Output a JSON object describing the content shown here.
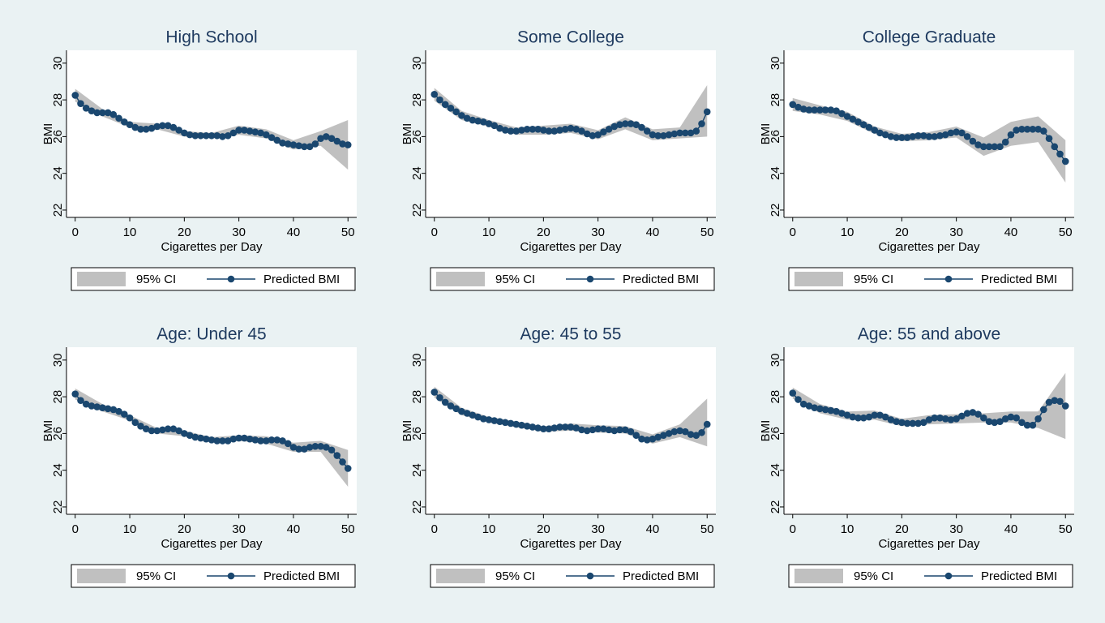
{
  "chart_data": [
    {
      "type": "line",
      "title": "High School",
      "xlabel": "Cigarettes per Day",
      "ylabel": "BMI",
      "x": [
        0,
        1,
        2,
        3,
        4,
        5,
        6,
        7,
        8,
        9,
        10,
        11,
        12,
        13,
        14,
        15,
        16,
        17,
        18,
        19,
        20,
        21,
        22,
        23,
        24,
        25,
        26,
        27,
        28,
        29,
        30,
        31,
        32,
        33,
        34,
        35,
        36,
        37,
        38,
        39,
        40,
        41,
        42,
        43,
        44,
        45,
        46,
        47,
        48,
        49,
        50
      ],
      "series": [
        {
          "name": "Predicted BMI",
          "color": "#1a476f",
          "values": [
            28.25,
            27.8,
            27.55,
            27.4,
            27.3,
            27.3,
            27.3,
            27.2,
            27.0,
            26.8,
            26.65,
            26.5,
            26.4,
            26.4,
            26.45,
            26.55,
            26.6,
            26.6,
            26.5,
            26.35,
            26.2,
            26.1,
            26.05,
            26.05,
            26.05,
            26.05,
            26.05,
            26.0,
            26.05,
            26.2,
            26.35,
            26.35,
            26.3,
            26.25,
            26.2,
            26.1,
            25.95,
            25.8,
            25.65,
            25.6,
            25.55,
            25.5,
            25.45,
            25.45,
            25.6,
            25.9,
            26.0,
            25.9,
            25.75,
            25.6,
            25.55
          ]
        }
      ],
      "ci": {
        "name": "95% CI",
        "color": "#c0c0c0",
        "x": [
          0,
          5,
          10,
          15,
          20,
          25,
          30,
          35,
          40,
          45,
          50
        ],
        "lower": [
          27.9,
          27.1,
          26.5,
          26.4,
          26.0,
          25.9,
          26.1,
          25.9,
          25.3,
          25.5,
          24.2
        ],
        "upper": [
          28.6,
          27.5,
          26.8,
          26.7,
          26.3,
          26.2,
          26.6,
          26.4,
          25.8,
          26.3,
          26.9
        ]
      },
      "xlim": [
        -1.6,
        51.6
      ],
      "ylim": [
        21.6,
        30.7
      ],
      "xticks": [
        0,
        10,
        20,
        30,
        40,
        50
      ],
      "yticks": [
        22,
        24,
        26,
        28,
        30
      ],
      "legend": "bottom"
    },
    {
      "type": "line",
      "title": "Some College",
      "xlabel": "Cigarettes per Day",
      "ylabel": "BMI",
      "x": [
        0,
        1,
        2,
        3,
        4,
        5,
        6,
        7,
        8,
        9,
        10,
        11,
        12,
        13,
        14,
        15,
        16,
        17,
        18,
        19,
        20,
        21,
        22,
        23,
        24,
        25,
        26,
        27,
        28,
        29,
        30,
        31,
        32,
        33,
        34,
        35,
        36,
        37,
        38,
        39,
        40,
        41,
        42,
        43,
        44,
        45,
        46,
        47,
        48,
        49,
        50
      ],
      "series": [
        {
          "name": "Predicted BMI",
          "color": "#1a476f",
          "values": [
            28.3,
            28.0,
            27.75,
            27.55,
            27.35,
            27.15,
            27.0,
            26.9,
            26.85,
            26.8,
            26.7,
            26.6,
            26.45,
            26.35,
            26.3,
            26.3,
            26.35,
            26.4,
            26.4,
            26.4,
            26.35,
            26.3,
            26.3,
            26.35,
            26.4,
            26.45,
            26.4,
            26.3,
            26.15,
            26.05,
            26.1,
            26.25,
            26.4,
            26.55,
            26.65,
            26.7,
            26.7,
            26.65,
            26.5,
            26.3,
            26.1,
            26.05,
            26.05,
            26.1,
            26.15,
            26.2,
            26.2,
            26.2,
            26.3,
            26.7,
            27.35
          ]
        }
      ],
      "ci": {
        "name": "95% CI",
        "color": "#c0c0c0",
        "x": [
          0,
          5,
          10,
          15,
          20,
          25,
          30,
          35,
          40,
          45,
          50
        ],
        "lower": [
          27.95,
          26.9,
          26.55,
          26.1,
          26.1,
          26.2,
          25.85,
          26.4,
          25.8,
          25.9,
          26.0
        ],
        "upper": [
          28.65,
          27.4,
          26.9,
          26.5,
          26.6,
          26.7,
          26.35,
          27.05,
          26.4,
          26.5,
          28.8
        ]
      },
      "xlim": [
        -1.6,
        51.6
      ],
      "ylim": [
        21.6,
        30.7
      ],
      "xticks": [
        0,
        10,
        20,
        30,
        40,
        50
      ],
      "yticks": [
        22,
        24,
        26,
        28,
        30
      ],
      "legend": "bottom"
    },
    {
      "type": "line",
      "title": "College Graduate",
      "xlabel": "Cigarettes per Day",
      "ylabel": "BMI",
      "x": [
        0,
        1,
        2,
        3,
        4,
        5,
        6,
        7,
        8,
        9,
        10,
        11,
        12,
        13,
        14,
        15,
        16,
        17,
        18,
        19,
        20,
        21,
        22,
        23,
        24,
        25,
        26,
        27,
        28,
        29,
        30,
        31,
        32,
        33,
        34,
        35,
        36,
        37,
        38,
        39,
        40,
        41,
        42,
        43,
        44,
        45,
        46,
        47,
        48,
        49,
        50
      ],
      "series": [
        {
          "name": "Predicted BMI",
          "color": "#1a476f",
          "values": [
            27.75,
            27.6,
            27.5,
            27.45,
            27.45,
            27.45,
            27.45,
            27.45,
            27.4,
            27.25,
            27.1,
            26.95,
            26.8,
            26.65,
            26.5,
            26.35,
            26.2,
            26.1,
            26.0,
            25.95,
            25.95,
            25.95,
            26.0,
            26.05,
            26.05,
            26.0,
            26.0,
            26.05,
            26.1,
            26.2,
            26.25,
            26.2,
            26.0,
            25.75,
            25.55,
            25.45,
            25.45,
            25.45,
            25.45,
            25.7,
            26.1,
            26.35,
            26.4,
            26.4,
            26.4,
            26.4,
            26.3,
            25.9,
            25.45,
            25.05,
            24.65
          ]
        }
      ],
      "ci": {
        "name": "95% CI",
        "color": "#c0c0c0",
        "x": [
          0,
          5,
          10,
          15,
          20,
          25,
          30,
          35,
          40,
          45,
          50
        ],
        "lower": [
          27.4,
          27.2,
          26.85,
          26.15,
          25.75,
          25.8,
          25.95,
          24.95,
          25.5,
          25.7,
          23.5
        ],
        "upper": [
          28.1,
          27.7,
          27.35,
          26.55,
          26.15,
          26.25,
          26.55,
          25.95,
          26.8,
          27.1,
          25.8
        ]
      },
      "xlim": [
        -1.6,
        51.6
      ],
      "ylim": [
        21.6,
        30.7
      ],
      "xticks": [
        0,
        10,
        20,
        30,
        40,
        50
      ],
      "yticks": [
        22,
        24,
        26,
        28,
        30
      ],
      "legend": "bottom"
    },
    {
      "type": "line",
      "title": "Age: Under 45",
      "xlabel": "Cigarettes per Day",
      "ylabel": "BMI",
      "x": [
        0,
        1,
        2,
        3,
        4,
        5,
        6,
        7,
        8,
        9,
        10,
        11,
        12,
        13,
        14,
        15,
        16,
        17,
        18,
        19,
        20,
        21,
        22,
        23,
        24,
        25,
        26,
        27,
        28,
        29,
        30,
        31,
        32,
        33,
        34,
        35,
        36,
        37,
        38,
        39,
        40,
        41,
        42,
        43,
        44,
        45,
        46,
        47,
        48,
        49,
        50
      ],
      "series": [
        {
          "name": "Predicted BMI",
          "color": "#1a476f",
          "values": [
            28.15,
            27.8,
            27.6,
            27.5,
            27.45,
            27.4,
            27.35,
            27.3,
            27.2,
            27.05,
            26.85,
            26.6,
            26.4,
            26.25,
            26.15,
            26.15,
            26.2,
            26.25,
            26.25,
            26.15,
            26.0,
            25.9,
            25.8,
            25.75,
            25.7,
            25.65,
            25.6,
            25.6,
            25.6,
            25.7,
            25.75,
            25.75,
            25.7,
            25.65,
            25.6,
            25.6,
            25.65,
            25.65,
            25.6,
            25.45,
            25.25,
            25.15,
            25.15,
            25.25,
            25.3,
            25.3,
            25.25,
            25.1,
            24.8,
            24.45,
            24.1
          ]
        }
      ],
      "ci": {
        "name": "95% CI",
        "color": "#c0c0c0",
        "x": [
          0,
          5,
          10,
          15,
          20,
          25,
          30,
          35,
          40,
          45,
          50
        ],
        "lower": [
          27.85,
          27.2,
          26.7,
          26.0,
          25.85,
          25.5,
          25.6,
          25.45,
          25.0,
          25.0,
          23.1
        ],
        "upper": [
          28.45,
          27.6,
          27.0,
          26.3,
          26.15,
          25.8,
          25.9,
          25.85,
          25.5,
          25.6,
          25.1
        ]
      },
      "xlim": [
        -1.6,
        51.6
      ],
      "ylim": [
        21.6,
        30.7
      ],
      "xticks": [
        0,
        10,
        20,
        30,
        40,
        50
      ],
      "yticks": [
        22,
        24,
        26,
        28,
        30
      ],
      "legend": "bottom"
    },
    {
      "type": "line",
      "title": "Age: 45 to 55",
      "xlabel": "Cigarettes per Day",
      "ylabel": "BMI",
      "x": [
        0,
        1,
        2,
        3,
        4,
        5,
        6,
        7,
        8,
        9,
        10,
        11,
        12,
        13,
        14,
        15,
        16,
        17,
        18,
        19,
        20,
        21,
        22,
        23,
        24,
        25,
        26,
        27,
        28,
        29,
        30,
        31,
        32,
        33,
        34,
        35,
        36,
        37,
        38,
        39,
        40,
        41,
        42,
        43,
        44,
        45,
        46,
        47,
        48,
        49,
        50
      ],
      "series": [
        {
          "name": "Predicted BMI",
          "color": "#1a476f",
          "values": [
            28.25,
            27.95,
            27.7,
            27.5,
            27.35,
            27.2,
            27.1,
            27.0,
            26.9,
            26.8,
            26.75,
            26.7,
            26.65,
            26.6,
            26.55,
            26.5,
            26.45,
            26.4,
            26.35,
            26.3,
            26.25,
            26.25,
            26.3,
            26.35,
            26.35,
            26.35,
            26.3,
            26.2,
            26.15,
            26.2,
            26.25,
            26.25,
            26.2,
            26.15,
            26.2,
            26.2,
            26.1,
            25.9,
            25.7,
            25.65,
            25.7,
            25.8,
            25.9,
            26.0,
            26.1,
            26.15,
            26.1,
            25.95,
            25.9,
            26.05,
            26.5
          ]
        }
      ],
      "ci": {
        "name": "95% CI",
        "color": "#c0c0c0",
        "x": [
          0,
          5,
          10,
          15,
          20,
          25,
          30,
          35,
          40,
          45,
          50
        ],
        "lower": [
          27.95,
          27.0,
          26.6,
          26.35,
          26.1,
          26.15,
          26.05,
          26.0,
          25.45,
          25.8,
          25.3
        ],
        "upper": [
          28.55,
          27.4,
          26.9,
          26.65,
          26.4,
          26.55,
          26.45,
          26.4,
          25.95,
          26.5,
          27.9
        ]
      },
      "xlim": [
        -1.6,
        51.6
      ],
      "ylim": [
        21.6,
        30.7
      ],
      "xticks": [
        0,
        10,
        20,
        30,
        40,
        50
      ],
      "yticks": [
        22,
        24,
        26,
        28,
        30
      ],
      "legend": "bottom"
    },
    {
      "type": "line",
      "title": "Age: 55 and above",
      "xlabel": "Cigarettes per Day",
      "ylabel": "BMI",
      "x": [
        0,
        1,
        2,
        3,
        4,
        5,
        6,
        7,
        8,
        9,
        10,
        11,
        12,
        13,
        14,
        15,
        16,
        17,
        18,
        19,
        20,
        21,
        22,
        23,
        24,
        25,
        26,
        27,
        28,
        29,
        30,
        31,
        32,
        33,
        34,
        35,
        36,
        37,
        38,
        39,
        40,
        41,
        42,
        43,
        44,
        45,
        46,
        47,
        48,
        49,
        50
      ],
      "series": [
        {
          "name": "Predicted BMI",
          "color": "#1a476f",
          "values": [
            28.2,
            27.85,
            27.6,
            27.5,
            27.4,
            27.35,
            27.3,
            27.25,
            27.2,
            27.1,
            27.0,
            26.9,
            26.85,
            26.85,
            26.9,
            27.0,
            27.0,
            26.9,
            26.75,
            26.65,
            26.6,
            26.55,
            26.55,
            26.55,
            26.6,
            26.75,
            26.85,
            26.85,
            26.8,
            26.75,
            26.8,
            26.95,
            27.1,
            27.15,
            27.05,
            26.85,
            26.65,
            26.6,
            26.65,
            26.8,
            26.9,
            26.85,
            26.6,
            26.45,
            26.45,
            26.8,
            27.3,
            27.7,
            27.8,
            27.75,
            27.5
          ]
        }
      ],
      "ci": {
        "name": "95% CI",
        "color": "#c0c0c0",
        "x": [
          0,
          5,
          10,
          15,
          20,
          25,
          30,
          35,
          40,
          45,
          50
        ],
        "lower": [
          27.9,
          27.1,
          26.75,
          26.75,
          26.4,
          26.5,
          26.55,
          26.6,
          26.6,
          26.3,
          25.7
        ],
        "upper": [
          28.5,
          27.6,
          27.2,
          27.25,
          26.8,
          27.0,
          27.05,
          27.1,
          27.2,
          27.2,
          29.3
        ]
      },
      "xlim": [
        -1.6,
        51.6
      ],
      "ylim": [
        21.6,
        30.7
      ],
      "xticks": [
        0,
        10,
        20,
        30,
        40,
        50
      ],
      "yticks": [
        22,
        24,
        26,
        28,
        30
      ],
      "legend": "bottom"
    }
  ]
}
